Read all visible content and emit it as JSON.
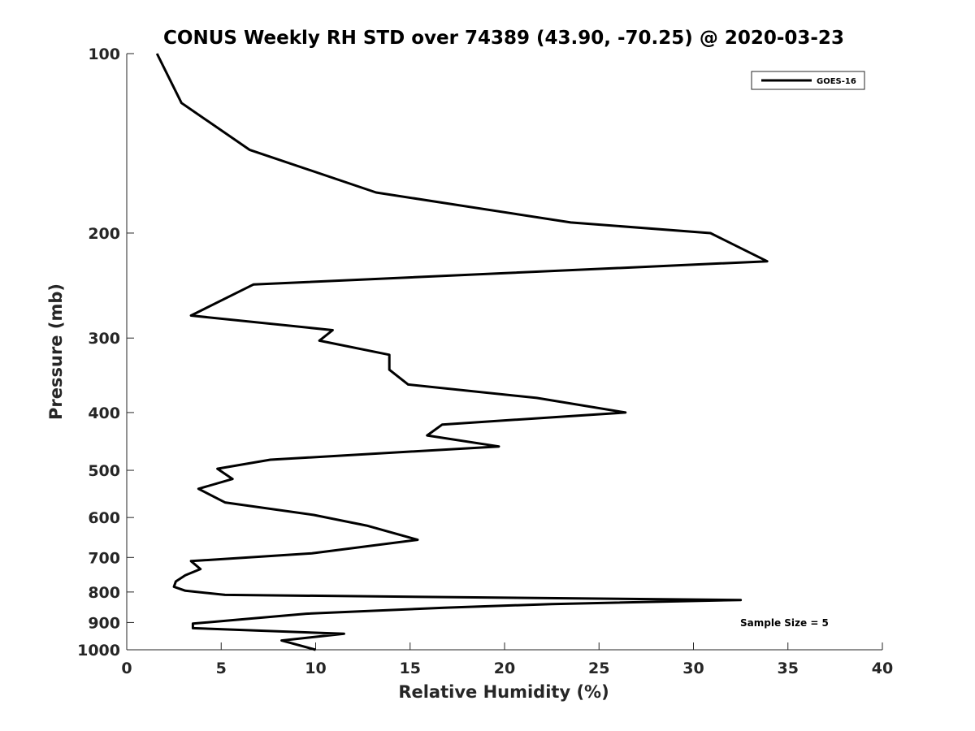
{
  "chart_data": {
    "type": "line",
    "title": "CONUS Weekly RH STD over 74389 (43.90, -70.25) @ 2020-03-23",
    "xlabel": "Relative Humidity (%)",
    "ylabel": "Pressure (mb)",
    "xlim": [
      0,
      40
    ],
    "ylim": [
      100,
      1000
    ],
    "y_scale": "log",
    "y_reversed": true,
    "grid": false,
    "legend_position": "top-right",
    "x_ticks": [
      0,
      5,
      10,
      15,
      20,
      25,
      30,
      35,
      40
    ],
    "y_ticks": [
      100,
      200,
      300,
      400,
      500,
      600,
      700,
      800,
      900,
      1000
    ],
    "series": [
      {
        "name": "GOES-16",
        "color": "#000000",
        "x": [
          1.6,
          2.9,
          6.5,
          13.2,
          23.5,
          30.9,
          33.9,
          6.7,
          3.4,
          10.9,
          10.2,
          13.9,
          13.9,
          14.9,
          21.7,
          26.4,
          16.7,
          15.9,
          19.7,
          7.6,
          4.8,
          5.6,
          3.8,
          5.2,
          9.9,
          12.7,
          15.4,
          9.8,
          3.4,
          3.9,
          3.1,
          2.6,
          2.5,
          3.1,
          5.2,
          32.5,
          22.5,
          16.8,
          9.5,
          3.5,
          3.5,
          11.5,
          8.2,
          10.0
        ],
        "y": [
          100,
          121,
          145,
          171,
          192,
          200,
          223,
          244,
          275,
          291,
          303,
          320,
          339,
          359,
          378,
          400,
          419,
          437,
          456,
          480,
          497,
          517,
          537,
          566,
          594,
          619,
          654,
          689,
          710,
          732,
          750,
          768,
          784,
          796,
          809,
          825,
          838,
          850,
          870,
          904,
          920,
          940,
          965,
          1000
        ]
      }
    ],
    "annotations": [
      "Sample Size = 5"
    ]
  }
}
